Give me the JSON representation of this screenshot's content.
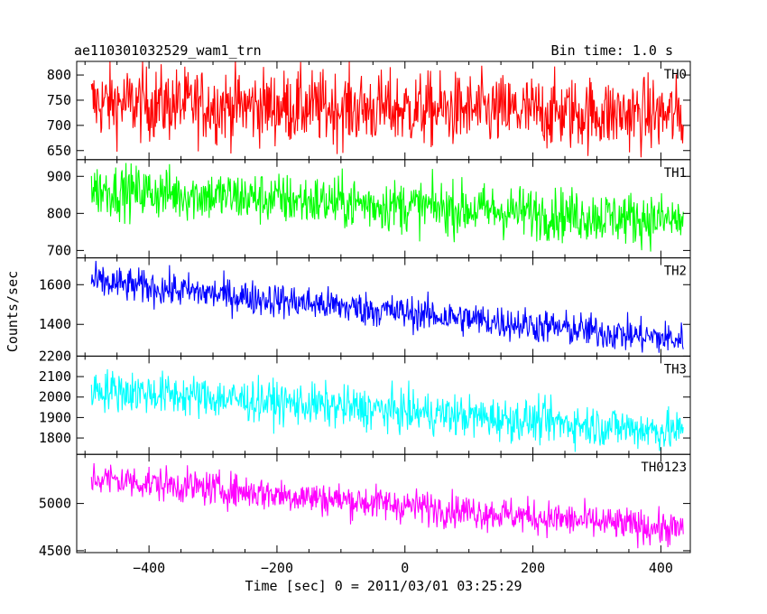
{
  "header": {
    "left_title": "ae110301032529_wam1_trn",
    "right_title": "Bin time: 1.0 s"
  },
  "chart_data": {
    "type": "line",
    "xlabel": "Time [sec] 0 = 2011/03/01 03:25:29",
    "ylabel": "Counts/sec",
    "xlim": [
      -513,
      446
    ],
    "xticks": [
      -400,
      -200,
      0,
      200,
      400
    ],
    "x_range": [
      -490,
      435
    ],
    "bin_time": 1.0,
    "panels": [
      {
        "name": "TH0",
        "color": "#ff0000",
        "ylim": [
          632,
          827
        ],
        "yticks": [
          650,
          700,
          750,
          800
        ],
        "trend": [
          [
            -490,
            745
          ],
          [
            435,
            720
          ]
        ],
        "noise": 37
      },
      {
        "name": "TH1",
        "color": "#00ff00",
        "ylim": [
          680,
          945
        ],
        "yticks": [
          700,
          800,
          900
        ],
        "trend": [
          [
            -490,
            865
          ],
          [
            435,
            780
          ]
        ],
        "noise": 36
      },
      {
        "name": "TH2",
        "color": "#0000ff",
        "ylim": [
          1240,
          1735
        ],
        "yticks": [
          1400,
          1600
        ],
        "trend": [
          [
            -490,
            1615
          ],
          [
            435,
            1320
          ]
        ],
        "noise": 44
      },
      {
        "name": "TH3",
        "color": "#00ffff",
        "ylim": [
          1720,
          2200
        ],
        "yticks": [
          1800,
          1900,
          2000,
          2100,
          2200
        ],
        "trend": [
          [
            -490,
            2040
          ],
          [
            435,
            1830
          ]
        ],
        "noise": 52
      },
      {
        "name": "TH0123",
        "color": "#ff00ff",
        "ylim": [
          4480,
          5520
        ],
        "yticks": [
          4500,
          5000
        ],
        "trend": [
          [
            -490,
            5270
          ],
          [
            435,
            4720
          ]
        ],
        "noise": 92
      }
    ]
  }
}
